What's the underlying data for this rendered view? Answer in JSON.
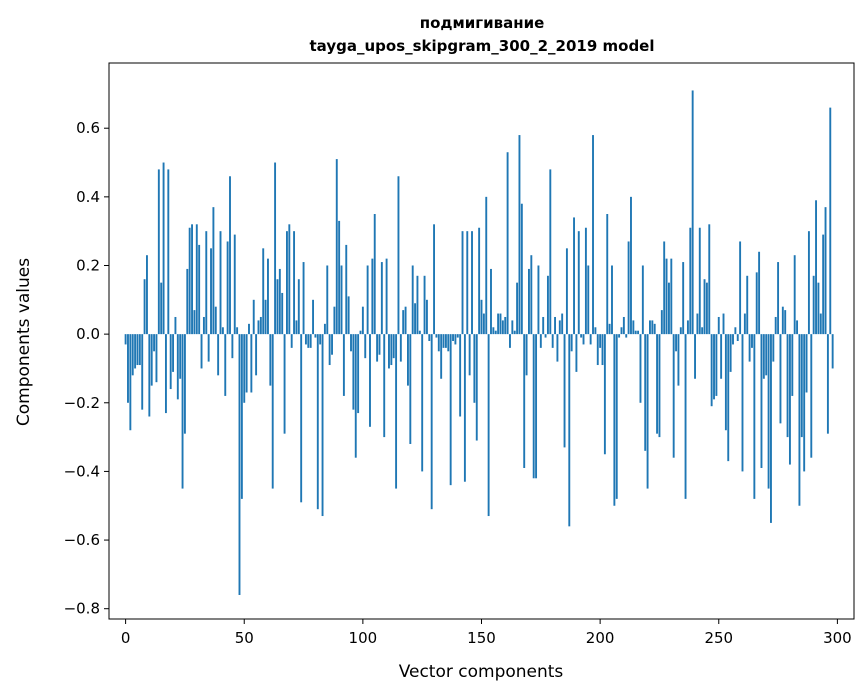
{
  "chart_data": {
    "type": "bar",
    "title_line1": "подмигивание",
    "title_line2": "tayga_upos_skipgram_300_2_2019 model",
    "xlabel": "Vector components",
    "ylabel": "Components values",
    "xlim": [
      -7,
      307
    ],
    "ylim": [
      -0.83,
      0.79
    ],
    "xticks": [
      0,
      50,
      100,
      150,
      200,
      250,
      300
    ],
    "xtick_labels": [
      "0",
      "50",
      "100",
      "150",
      "200",
      "250",
      "300"
    ],
    "yticks": [
      -0.8,
      -0.6,
      -0.4,
      -0.2,
      0.0,
      0.2,
      0.4,
      0.6
    ],
    "ytick_labels": [
      "−0.8",
      "−0.6",
      "−0.4",
      "−0.2",
      "0.0",
      "0.2",
      "0.4",
      "0.6"
    ],
    "grid": false,
    "bar_color": "#1f77b4",
    "values": [
      -0.03,
      -0.2,
      -0.28,
      -0.12,
      -0.1,
      -0.09,
      -0.09,
      -0.22,
      0.16,
      0.23,
      -0.24,
      -0.15,
      -0.05,
      -0.14,
      0.48,
      0.15,
      0.5,
      -0.23,
      0.48,
      -0.16,
      -0.11,
      0.05,
      -0.19,
      -0.13,
      -0.45,
      -0.29,
      0.19,
      0.31,
      0.32,
      0.07,
      0.32,
      0.26,
      -0.1,
      0.05,
      0.3,
      -0.08,
      0.25,
      0.37,
      0.08,
      -0.12,
      0.3,
      0.02,
      -0.18,
      0.27,
      0.46,
      -0.07,
      0.29,
      0.02,
      -0.76,
      -0.48,
      -0.2,
      -0.17,
      0.03,
      -0.17,
      0.1,
      -0.12,
      0.04,
      0.05,
      0.25,
      0.1,
      0.22,
      -0.15,
      -0.45,
      0.5,
      0.16,
      0.19,
      0.12,
      -0.29,
      0.3,
      0.32,
      -0.04,
      0.3,
      0.04,
      0.16,
      -0.49,
      0.21,
      -0.03,
      -0.04,
      -0.04,
      0.1,
      -0.01,
      -0.51,
      -0.03,
      -0.53,
      0.03,
      0.2,
      -0.09,
      -0.06,
      0.08,
      0.51,
      0.33,
      0.2,
      -0.18,
      0.26,
      0.11,
      -0.05,
      -0.22,
      -0.36,
      -0.23,
      0.01,
      0.08,
      -0.07,
      0.2,
      -0.27,
      0.22,
      0.35,
      -0.08,
      -0.06,
      0.21,
      -0.3,
      0.22,
      -0.1,
      -0.09,
      -0.07,
      -0.45,
      0.46,
      -0.08,
      0.07,
      0.08,
      -0.15,
      -0.32,
      0.2,
      0.09,
      0.17,
      0.01,
      -0.4,
      0.17,
      0.1,
      -0.02,
      -0.51,
      0.32,
      -0.01,
      -0.05,
      -0.13,
      -0.04,
      -0.04,
      -0.05,
      -0.44,
      -0.02,
      -0.03,
      -0.01,
      -0.24,
      0.3,
      -0.43,
      0.3,
      -0.12,
      0.3,
      -0.2,
      -0.31,
      0.31,
      0.1,
      0.06,
      0.4,
      -0.53,
      0.19,
      0.02,
      0.01,
      0.06,
      0.06,
      0.04,
      0.05,
      0.53,
      -0.04,
      0.04,
      0.01,
      0.15,
      0.58,
      0.38,
      -0.39,
      -0.12,
      0.19,
      0.23,
      -0.42,
      -0.42,
      0.2,
      -0.04,
      0.05,
      -0.01,
      0.17,
      0.48,
      -0.04,
      0.05,
      -0.08,
      0.04,
      0.06,
      -0.33,
      0.25,
      -0.56,
      -0.05,
      0.34,
      -0.11,
      0.3,
      -0.01,
      -0.03,
      0.31,
      0.2,
      -0.03,
      0.58,
      0.02,
      -0.09,
      -0.04,
      -0.09,
      -0.35,
      0.35,
      0.03,
      0.2,
      -0.5,
      -0.48,
      -0.01,
      0.02,
      0.05,
      -0.01,
      0.27,
      0.4,
      0.04,
      0.01,
      0.01,
      -0.2,
      0.2,
      -0.34,
      -0.45,
      0.04,
      0.04,
      0.03,
      -0.29,
      -0.3,
      0.07,
      0.27,
      0.22,
      0.15,
      0.22,
      -0.36,
      -0.05,
      -0.15,
      0.02,
      0.21,
      -0.48,
      0.04,
      0.31,
      0.71,
      -0.13,
      0.06,
      0.31,
      0.02,
      0.16,
      0.15,
      0.32,
      -0.21,
      -0.19,
      -0.18,
      0.05,
      -0.13,
      0.06,
      -0.28,
      -0.37,
      -0.11,
      -0.03,
      0.02,
      -0.02,
      0.27,
      -0.4,
      0.06,
      0.17,
      -0.08,
      -0.04,
      -0.48,
      0.18,
      0.24,
      -0.39,
      -0.13,
      -0.12,
      -0.45,
      -0.55,
      -0.08,
      0.05,
      0.21,
      -0.26,
      0.08,
      0.07,
      -0.3,
      -0.38,
      -0.18,
      0.23,
      0.04,
      -0.5,
      -0.3,
      -0.4,
      -0.17,
      0.3,
      -0.36,
      0.17,
      0.39,
      0.15,
      0.06,
      0.29,
      0.37,
      -0.29,
      0.66,
      -0.1
    ]
  }
}
